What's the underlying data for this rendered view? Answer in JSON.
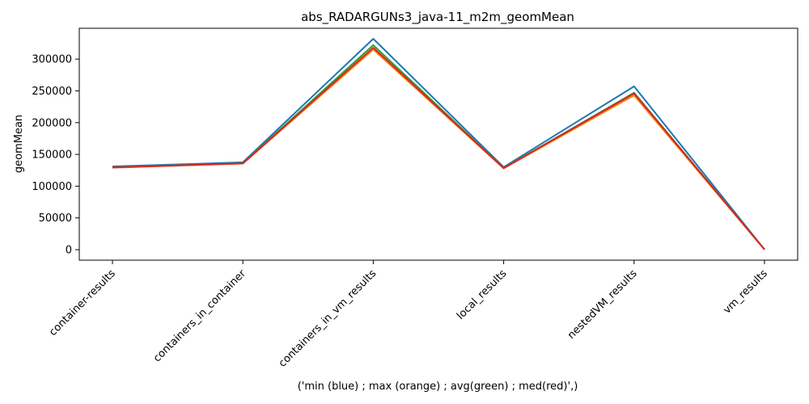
{
  "chart_data": {
    "type": "line",
    "title": "abs_RADARGUNs3_java-11_m2m_geomMean",
    "xlabel": "('min (blue) ; max (orange) ; avg(green) ; med(red)',)",
    "ylabel": "geomMean",
    "categories": [
      "container-results",
      "containers_in_container",
      "containers_in_vm_results",
      "local_results",
      "nestedVM_results",
      "vm_results"
    ],
    "ylim": [
      -16500,
      348500
    ],
    "yticks": [
      0,
      50000,
      100000,
      150000,
      200000,
      250000,
      300000
    ],
    "grid": false,
    "series": [
      {
        "color": "#1f77b4",
        "values": [
          131000,
          137500,
          332000,
          130000,
          257000,
          300
        ]
      },
      {
        "color": "#2ca02c",
        "values": [
          129500,
          136000,
          322000,
          128500,
          247000,
          300
        ]
      },
      {
        "color": "#ff7f0e",
        "values": [
          129000,
          135500,
          315000,
          128000,
          243000,
          300
        ]
      },
      {
        "color": "#d62728",
        "values": [
          129500,
          135800,
          318000,
          128300,
          246000,
          300
        ]
      }
    ]
  }
}
